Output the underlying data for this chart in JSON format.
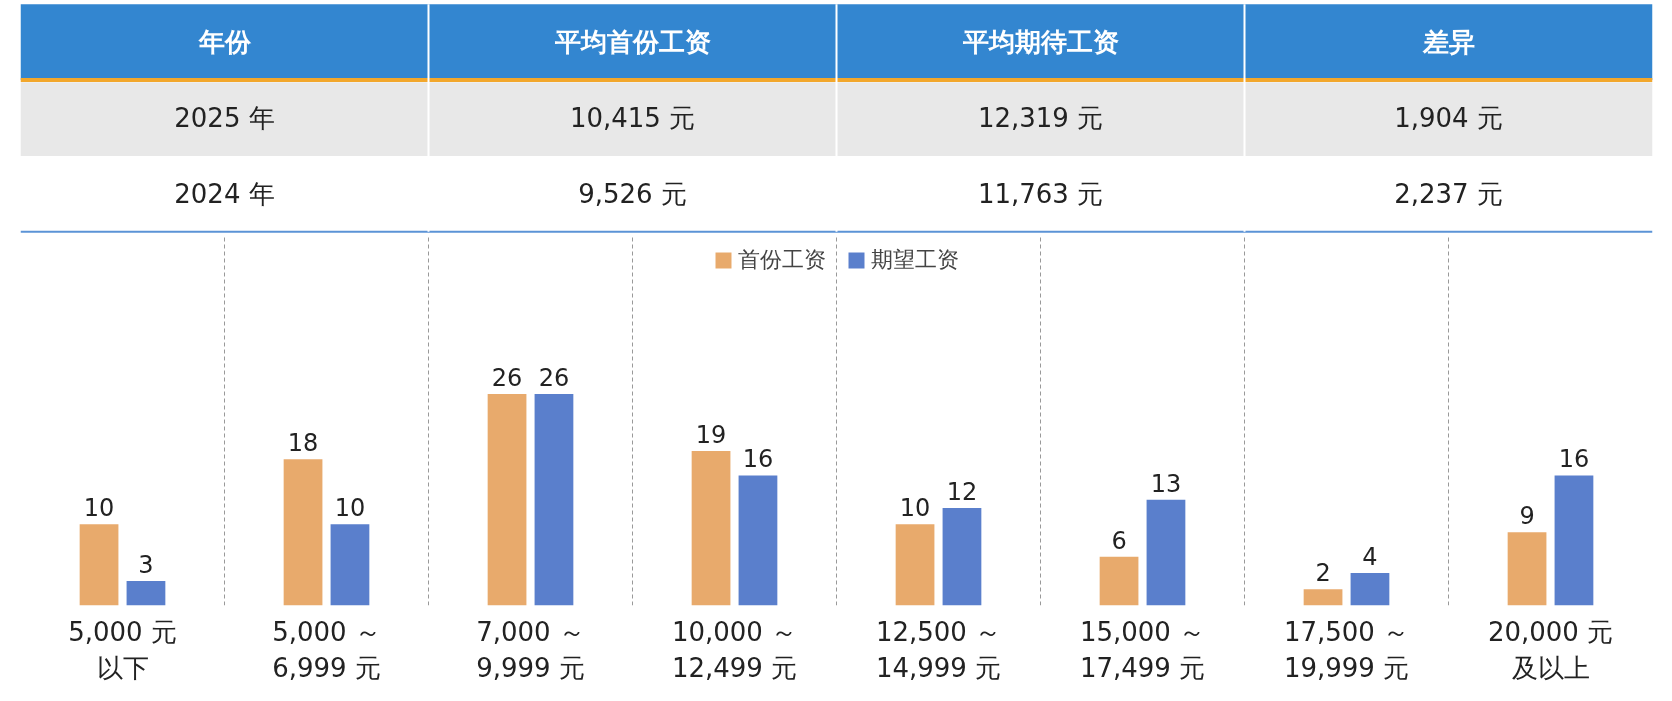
{
  "chart_data": [
    {
      "type": "other",
      "categories": [
        "年份",
        "平均首份工资",
        "平均期待工资",
        "差异"
      ],
      "cell_labels": [
        [
          "2025 年",
          "10,415 元",
          "12,319 元",
          "1,904 元"
        ],
        [
          "2024 年",
          "9,526 元",
          "11,763 元",
          "2,237 元"
        ]
      ]
    },
    {
      "type": "bar",
      "categories": [
        "5,000 元以下",
        "5,000 ～\n6,999 元",
        "7,000 ～\n9,999 元",
        "10,000 ～\n12,499 元",
        "12,500 ～\n14,999 元",
        "15,000 ～\n17,499 元",
        "17,500 ～\n19,999 元",
        "20,000 元及以上"
      ],
      "series": [
        {
          "name": "首份工资",
          "color": "#e8aa6c",
          "values": [
            10,
            18,
            26,
            19,
            10,
            6,
            2,
            9
          ]
        },
        {
          "name": "期望工资",
          "color": "#5a7fcc",
          "values": [
            3,
            10,
            26,
            16,
            12,
            13,
            4,
            16
          ]
        }
      ],
      "data_labels": true,
      "legend": "top",
      "grid": "x"
    }
  ]
}
